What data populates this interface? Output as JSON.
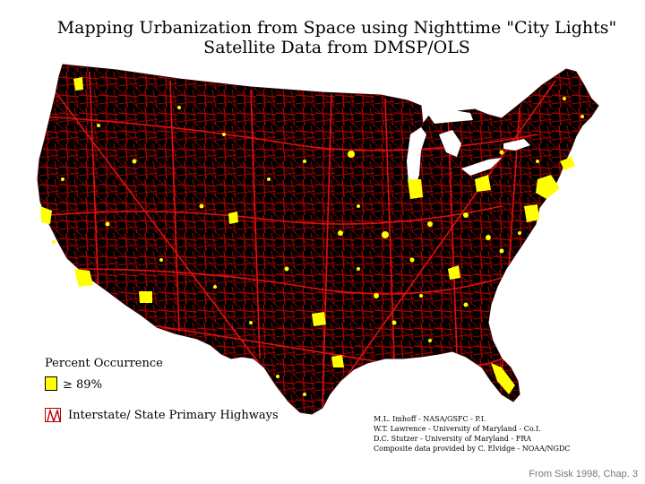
{
  "title": {
    "line1": "Mapping Urbanization from Space using Nighttime \"City Lights\"",
    "line2": "Satellite Data from DMSP/OLS"
  },
  "legend": {
    "heading": "Percent Occurrence",
    "items": [
      {
        "label": "≥ 89%",
        "color": "#ffff00"
      },
      {
        "label": "Interstate/ State Primary Highways",
        "color": "#c00000"
      }
    ]
  },
  "credits": [
    "M.L. Imhoff - NASA/GSFC - P.I.",
    "W.T. Lawrence - University of Maryland - Co.I.",
    "D.C. Stutzer - University of Maryland - FRA",
    "Composite data provided by C. Elvidge - NOAA/NGDC"
  ],
  "source_note": "From Sisk 1998, Chap. 3",
  "colors": {
    "land": "#000000",
    "highways": "#c00000",
    "lights": "#ffff00",
    "water": "#ffffff"
  }
}
